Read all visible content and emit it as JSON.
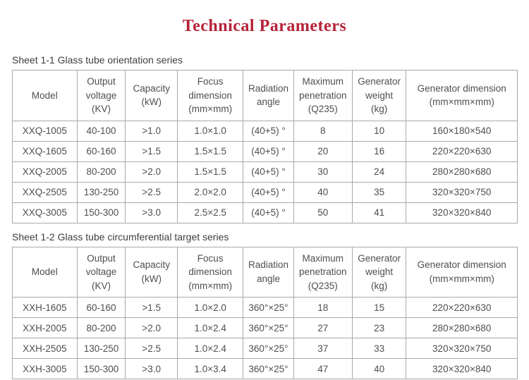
{
  "page": {
    "title": "Technical Parameters",
    "title_color": "#b62339",
    "border_color": "#a9a9a9",
    "text_color": "#4f4f4f"
  },
  "tables": [
    {
      "caption": "Sheet 1-1 Glass tube orientation series",
      "headers": [
        "Model",
        "Output\nvoltage\n(KV)",
        "Capacity\n(kW)",
        "Focus\ndimension\n(mm×mm)",
        "Radiation\nangle",
        "Maximum\npenetration\n(Q235)",
        "Generator\nweight\n(kg)",
        "Generator dimension\n(mm×mm×mm)"
      ],
      "rows": [
        [
          "XXQ-1005",
          "40-100",
          ">1.0",
          "1.0×1.0",
          "(40+5) °",
          "8",
          "10",
          "160×180×540"
        ],
        [
          "XXQ-1605",
          "60-160",
          ">1.5",
          "1.5×1.5",
          "(40+5) °",
          "20",
          "16",
          "220×220×630"
        ],
        [
          "XXQ-2005",
          "80-200",
          ">2.0",
          "1.5×1.5",
          "(40+5) °",
          "30",
          "24",
          "280×280×680"
        ],
        [
          "XXQ-2505",
          "130-250",
          ">2.5",
          "2.0×2.0",
          "(40+5) °",
          "40",
          "35",
          "320×320×750"
        ],
        [
          "XXQ-3005",
          "150-300",
          ">3.0",
          "2.5×2.5",
          "(40+5) °",
          "50",
          "41",
          "320×320×840"
        ]
      ]
    },
    {
      "caption": "Sheet 1-2 Glass tube circumferential target series",
      "headers": [
        "Model",
        "Output\nvoltage\n(KV)",
        "Capacity\n(kW)",
        "Focus\ndimension\n(mm×mm)",
        "Radiation\nangle",
        "Maximum\npenetration\n(Q235)",
        "Generator\nweight\n(kg)",
        "Generator dimension\n(mm×mm×mm)"
      ],
      "rows": [
        [
          "XXH-1605",
          "60-160",
          ">1.5",
          "1.0×2.0",
          "360°×25°",
          "18",
          "15",
          "220×220×630"
        ],
        [
          "XXH-2005",
          "80-200",
          ">2.0",
          "1.0×2.4",
          "360°×25°",
          "27",
          "23",
          "280×280×680"
        ],
        [
          "XXH-2505",
          "130-250",
          ">2.5",
          "1.0×2.4",
          "360°×25°",
          "37",
          "33",
          "320×320×750"
        ],
        [
          "XXH-3005",
          "150-300",
          ">3.0",
          "1.0×3.4",
          "360°×25°",
          "47",
          "40",
          "320×320×840"
        ]
      ]
    }
  ]
}
